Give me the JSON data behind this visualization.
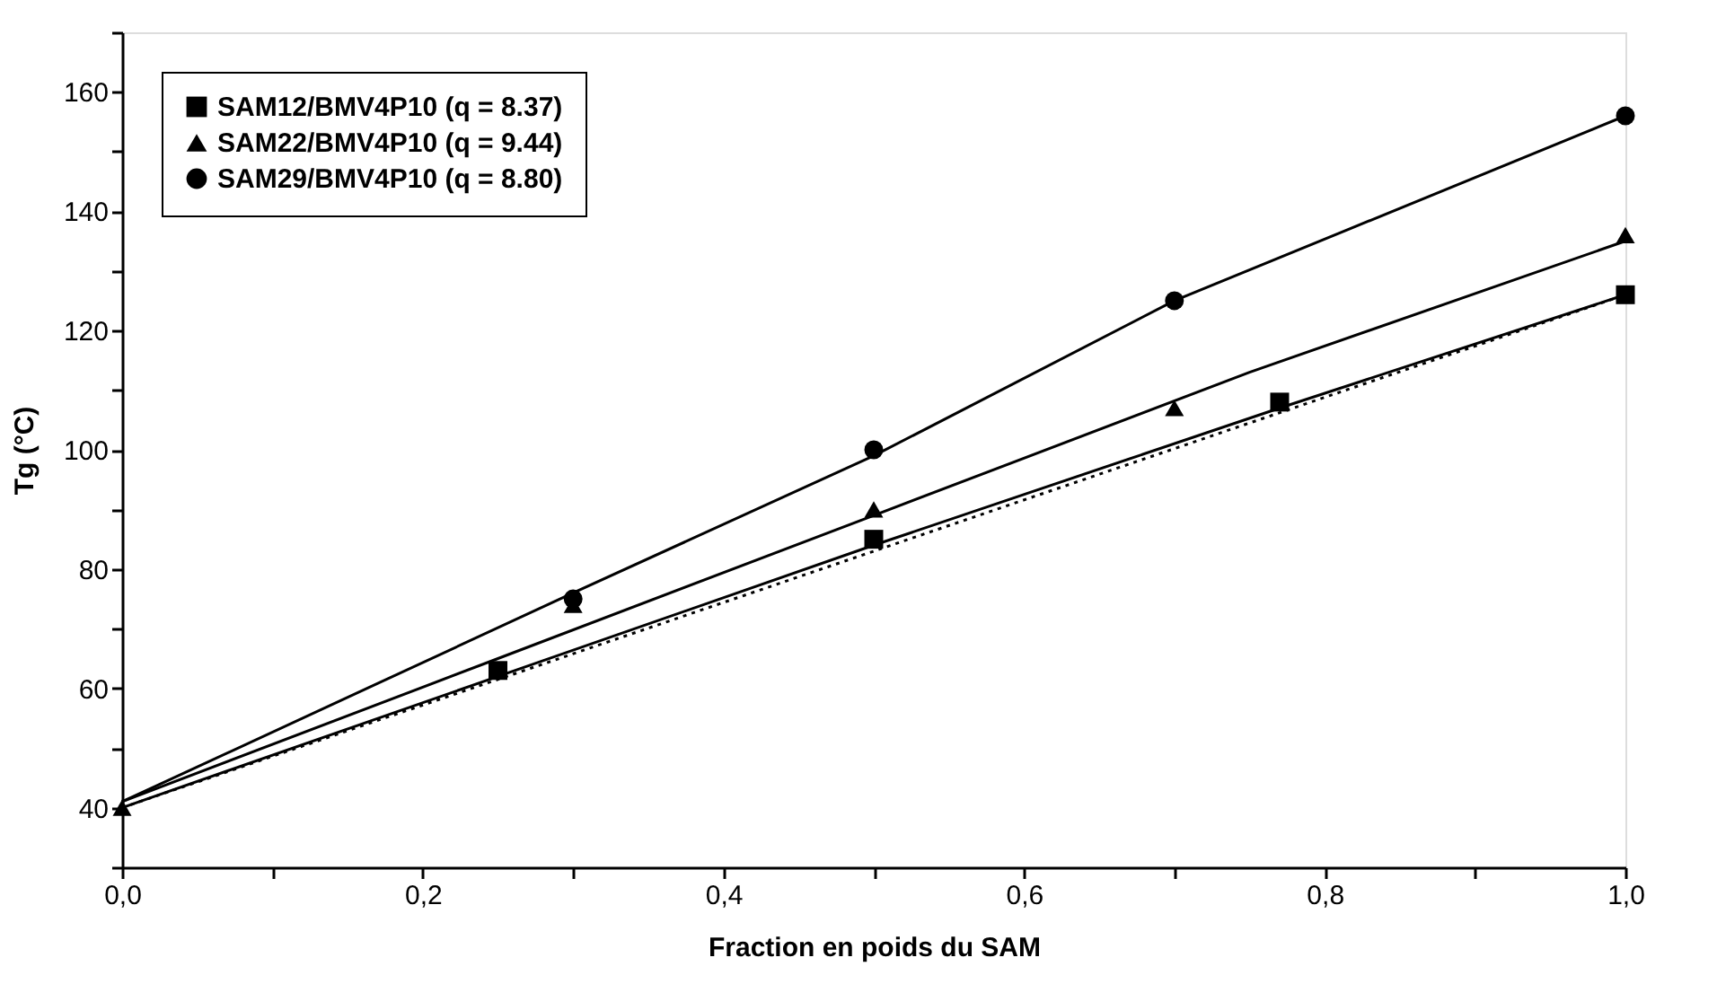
{
  "chart_data": {
    "type": "scatter",
    "xlabel": "Fraction en poids du SAM",
    "ylabel": "Tg (°C)",
    "xlim": [
      0,
      1
    ],
    "ylim": [
      30,
      170
    ],
    "xticks": [
      {
        "value": 0,
        "label": "0,0"
      },
      {
        "value": 0.1,
        "label": null
      },
      {
        "value": 0.2,
        "label": "0,2"
      },
      {
        "value": 0.3,
        "label": null
      },
      {
        "value": 0.4,
        "label": "0,4"
      },
      {
        "value": 0.5,
        "label": null
      },
      {
        "value": 0.6,
        "label": "0,6"
      },
      {
        "value": 0.7,
        "label": null
      },
      {
        "value": 0.8,
        "label": "0,8"
      },
      {
        "value": 0.9,
        "label": null
      },
      {
        "value": 1,
        "label": "1,0"
      }
    ],
    "yticks": [
      {
        "value": 30,
        "label": null
      },
      40,
      {
        "value": 50,
        "label": null
      },
      60,
      {
        "value": 70,
        "label": null
      },
      80,
      {
        "value": 90,
        "label": null
      },
      100,
      {
        "value": 110,
        "label": null
      },
      120,
      {
        "value": 130,
        "label": null
      },
      140,
      {
        "value": 150,
        "label": null
      },
      160,
      {
        "value": 170,
        "label": null
      }
    ],
    "grid": false,
    "legend": "top left",
    "series": [
      {
        "name": "SAM12/BMV4P10 (q = 8.37)",
        "type": "scatter",
        "marker": "square",
        "color": "#000000",
        "x": [
          0.25,
          0.5,
          0.77,
          1
        ],
        "values": [
          63,
          85,
          108,
          126
        ]
      },
      {
        "name": "SAM22/BMV4P10 (q = 9.44)",
        "type": "scatter",
        "marker": "triangle",
        "color": "#000000",
        "x": [
          0,
          0.3,
          0.5,
          0.7,
          1
        ],
        "values": [
          40,
          74,
          90,
          107,
          136
        ]
      },
      {
        "name": "SAM29/BMV4P10 (q = 8.80)",
        "type": "scatter",
        "marker": "circle",
        "color": "#000000",
        "x": [
          0.3,
          0.5,
          0.7,
          1
        ],
        "values": [
          75,
          100,
          125,
          156
        ]
      },
      {
        "type": "line",
        "line_style": "solid",
        "color": "#000000",
        "x": [
          0,
          0.25,
          0.5,
          0.77,
          1
        ],
        "values": [
          40,
          62,
          84,
          107,
          126
        ]
      },
      {
        "type": "line",
        "line_style": "solid",
        "color": "#000000",
        "x": [
          0,
          0.25,
          0.5,
          0.75,
          1
        ],
        "values": [
          41,
          65,
          89,
          113,
          135
        ]
      },
      {
        "type": "line",
        "line_style": "solid",
        "color": "#000000",
        "x": [
          0,
          0.3,
          0.5,
          0.7,
          1
        ],
        "values": [
          41,
          76,
          99,
          125,
          156
        ]
      },
      {
        "type": "line",
        "line_style": "dotted",
        "color": "#000000",
        "x": [
          0,
          1
        ],
        "values": [
          40,
          126
        ]
      }
    ]
  }
}
